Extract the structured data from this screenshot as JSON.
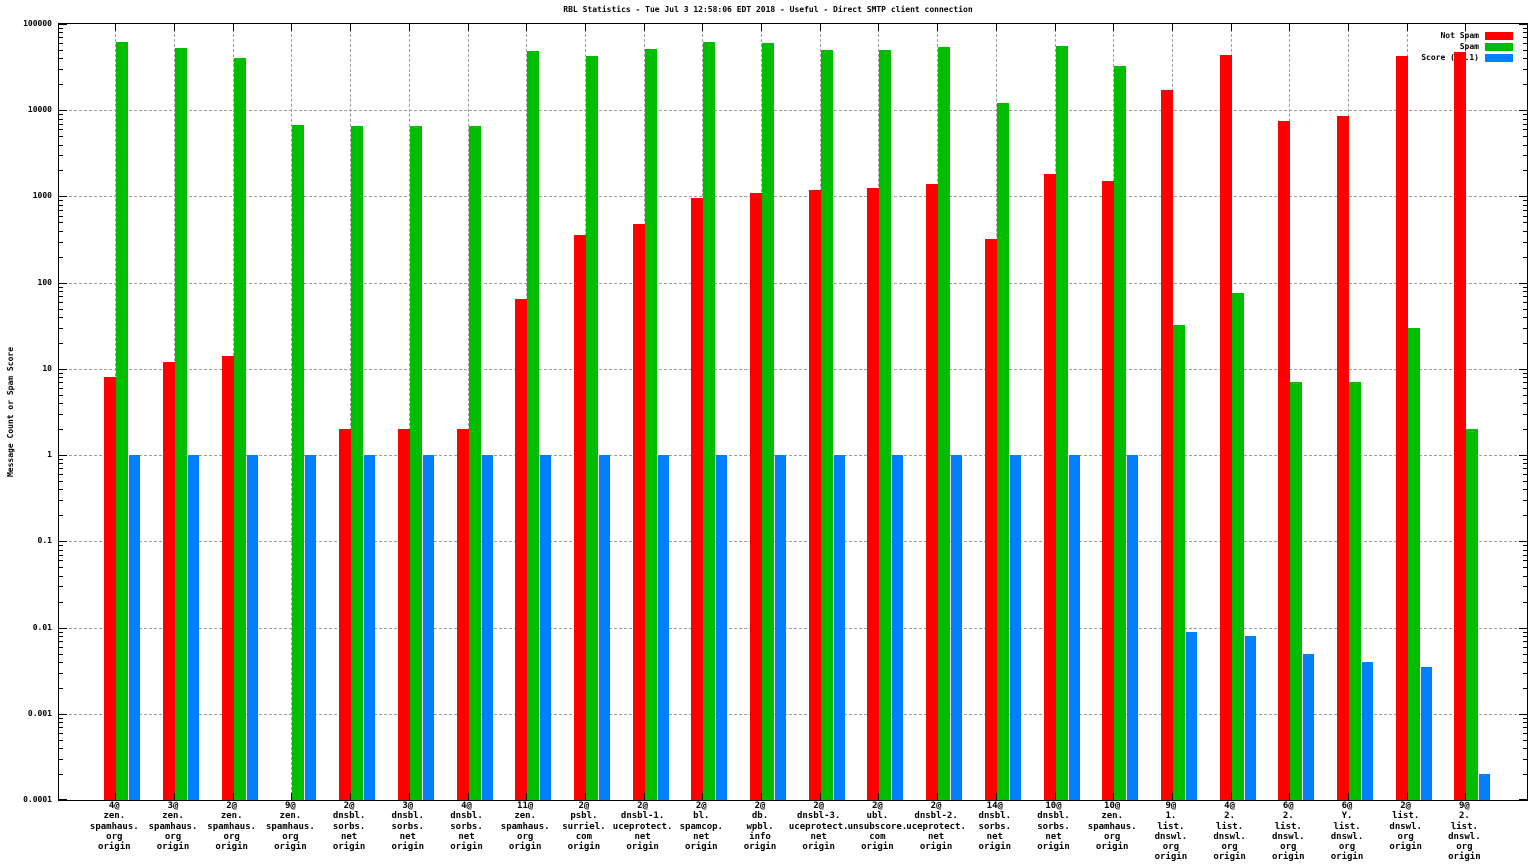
{
  "title": "RBL Statistics - Tue Jul  3 12:58:06 EDT 2018 - Useful - Direct SMTP client connection",
  "ylabel": "Message Count or Spam Score",
  "chart_data": {
    "type": "bar",
    "scale": "log",
    "title": "RBL Statistics - Tue Jul  3 12:58:06 EDT 2018 - Useful - Direct SMTP client connection",
    "xlabel": "",
    "ylabel": "Message Count or Spam Score",
    "ylim": [
      0.0001,
      100000
    ],
    "y_ticks": [
      "100000",
      "10000",
      "1000",
      "100",
      "10",
      "1",
      "0.1",
      "0.01",
      "0.001",
      "0.0001"
    ],
    "grid": true,
    "legend_position": "top-right",
    "categories": [
      "4@zen.spamhaus.org origin",
      "3@zen.spamhaus.org origin",
      "2@zen.spamhaus.org origin",
      "9@zen.spamhaus.org origin",
      "2@dnsbl.sorbs.net origin",
      "3@dnsbl.sorbs.net origin",
      "4@dnsbl.sorbs.net origin",
      "11@zen.spamhaus.org origin",
      "2@psbl.surriel.com origin",
      "2@dnsbl-1.uceprotect.net origin",
      "2@bl.spamcop.net origin",
      "2@db.wpbl.info origin",
      "2@dnsbl-3.uceprotect.net origin",
      "2@ubl.unsubscore.com origin",
      "2@dnsbl-2.uceprotect.net origin",
      "14@dnsbl.sorbs.net origin",
      "10@dnsbl.sorbs.net origin",
      "10@zen.spamhaus.org origin",
      "9@1.list.dnswl.org origin",
      "4@2.list.dnswl.org origin",
      "6@2.list.dnswl.org origin",
      "6@Y.list.dnswl.org origin",
      "2@list.dnswl.org origin",
      "9@2.list.dnswl.org origin"
    ],
    "categories_lines": [
      [
        "4@",
        "zen.",
        "spamhaus.",
        "org",
        "origin"
      ],
      [
        "3@",
        "zen.",
        "spamhaus.",
        "org",
        "origin"
      ],
      [
        "2@",
        "zen.",
        "spamhaus.",
        "org",
        "origin"
      ],
      [
        "9@",
        "zen.",
        "spamhaus.",
        "org",
        "origin"
      ],
      [
        "2@",
        "dnsbl.",
        "sorbs.",
        "net",
        "origin"
      ],
      [
        "3@",
        "dnsbl.",
        "sorbs.",
        "net",
        "origin"
      ],
      [
        "4@",
        "dnsbl.",
        "sorbs.",
        "net",
        "origin"
      ],
      [
        "11@",
        "zen.",
        "spamhaus.",
        "org",
        "origin"
      ],
      [
        "2@",
        "psbl.",
        "surriel.",
        "com",
        "origin"
      ],
      [
        "2@",
        "dnsbl-1.",
        "uceprotect.",
        "net",
        "origin"
      ],
      [
        "2@",
        "bl.",
        "spamcop.",
        "net",
        "origin"
      ],
      [
        "2@",
        "db.",
        "wpbl.",
        "info",
        "origin"
      ],
      [
        "2@",
        "dnsbl-3.",
        "uceprotect.",
        "net",
        "origin"
      ],
      [
        "2@",
        "ubl.",
        "unsubscore.",
        "com",
        "origin"
      ],
      [
        "2@",
        "dnsbl-2.",
        "uceprotect.",
        "net",
        "origin"
      ],
      [
        "14@",
        "dnsbl.",
        "sorbs.",
        "net",
        "origin"
      ],
      [
        "10@",
        "dnsbl.",
        "sorbs.",
        "net",
        "origin"
      ],
      [
        "10@",
        "zen.",
        "spamhaus.",
        "org",
        "origin"
      ],
      [
        "9@",
        "1.",
        "list.",
        "dnswl.",
        "org",
        "origin"
      ],
      [
        "4@",
        "2.",
        "list.",
        "dnswl.",
        "org",
        "origin"
      ],
      [
        "6@",
        "2.",
        "list.",
        "dnswl.",
        "org",
        "origin"
      ],
      [
        "6@",
        "Y.",
        "list.",
        "dnswl.",
        "org",
        "origin"
      ],
      [
        "2@",
        "list.",
        "dnswl.",
        "org",
        "origin"
      ],
      [
        "9@",
        "2.",
        "list.",
        "dnswl.",
        "org",
        "origin"
      ]
    ],
    "series": [
      {
        "name": "Not Spam",
        "color": "#ff0000",
        "values": [
          8,
          12,
          14,
          null,
          2,
          2,
          2,
          65,
          360,
          480,
          950,
          1100,
          1200,
          1250,
          1400,
          320,
          1800,
          1500,
          17000,
          44000,
          7500,
          8500,
          42000,
          47000
        ]
      },
      {
        "name": "Spam",
        "color": "#00bd00",
        "values": [
          62000,
          52000,
          40000,
          6800,
          6500,
          6500,
          6500,
          48000,
          42000,
          51000,
          62000,
          61000,
          50000,
          50000,
          54000,
          12000,
          55000,
          33000,
          32,
          75,
          7,
          7,
          30,
          2
        ]
      },
      {
        "name": "Score (0..1)",
        "color": "#0080ff",
        "values": [
          1,
          1,
          1,
          1,
          1,
          1,
          1,
          1,
          1,
          1,
          1,
          1,
          1,
          1,
          1,
          1,
          1,
          1,
          0.009,
          0.008,
          0.005,
          0.004,
          0.0035,
          0.0002
        ]
      }
    ]
  }
}
